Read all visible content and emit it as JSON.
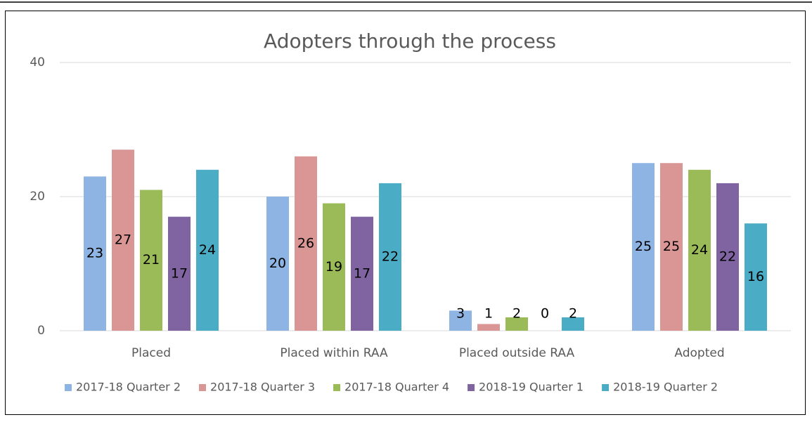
{
  "chart_data": {
    "type": "bar",
    "title": "Adopters through the process",
    "categories": [
      "Placed",
      "Placed within RAA",
      "Placed outside RAA",
      "Adopted"
    ],
    "series": [
      {
        "name": "2017-18 Quarter 2",
        "color": "#8eb4e3",
        "values": [
          23,
          20,
          3,
          25
        ]
      },
      {
        "name": "2017-18 Quarter 3",
        "color": "#d99694",
        "values": [
          27,
          26,
          1,
          25
        ]
      },
      {
        "name": "2017-18 Quarter 4",
        "color": "#9bbb59",
        "values": [
          21,
          19,
          2,
          24
        ]
      },
      {
        "name": "2018-19 Quarter 1",
        "color": "#8064a2",
        "values": [
          17,
          17,
          0,
          22
        ]
      },
      {
        "name": "2018-19 Quarter 2",
        "color": "#4bacc6",
        "values": [
          24,
          22,
          2,
          16
        ]
      }
    ],
    "ylim": [
      0,
      40
    ],
    "yticks": [
      0,
      20,
      40
    ],
    "grid": true,
    "legend": "bottom"
  }
}
